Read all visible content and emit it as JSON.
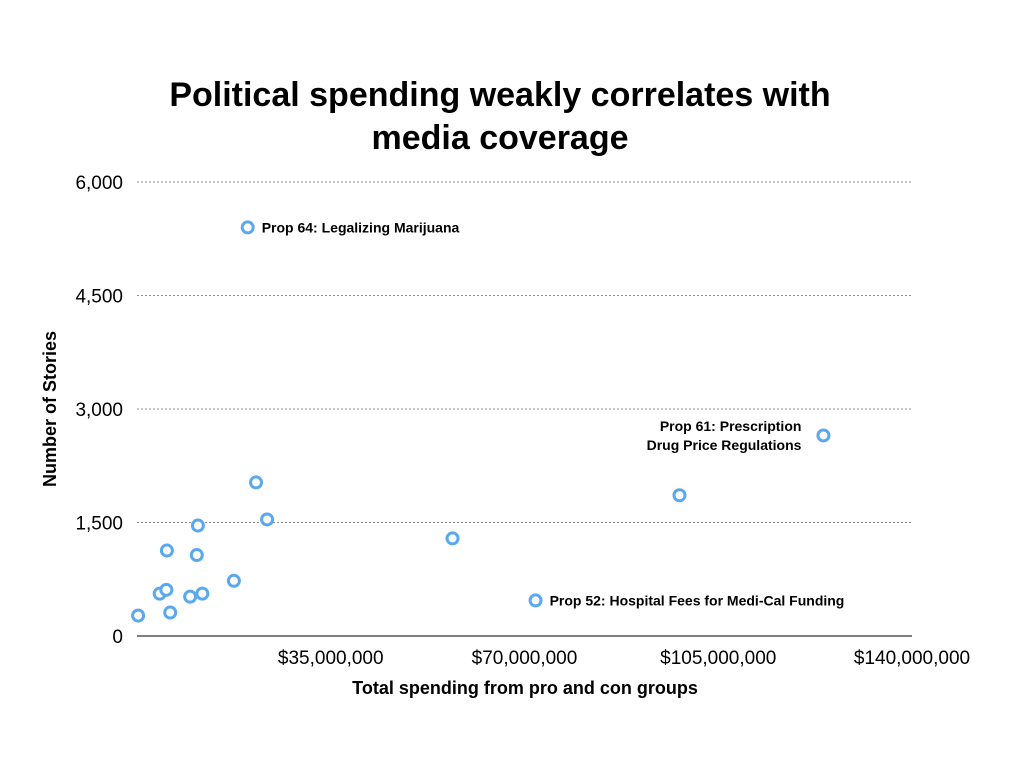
{
  "chart_data": {
    "type": "scatter",
    "title_lines": [
      "Political spending weakly correlates with",
      "media coverage"
    ],
    "xlabel": "Total spending from pro and con groups",
    "ylabel": "Number of Stories",
    "xlim": [
      0,
      140000000
    ],
    "ylim": [
      0,
      6000
    ],
    "x_ticks": [
      35000000,
      70000000,
      105000000,
      140000000
    ],
    "x_tick_labels": [
      "$35,000,000",
      "$70,000,000",
      "$105,000,000",
      "$140,000,000"
    ],
    "y_ticks": [
      0,
      1500,
      3000,
      4500,
      6000
    ],
    "y_tick_labels": [
      "0",
      "1,500",
      "3,000",
      "4,500",
      "6,000"
    ],
    "grid": "horizontal dotted",
    "marker_color": "#5aa9f0",
    "points": [
      {
        "x": 20000000,
        "y": 5400,
        "label": "Prop 64: Legalizing Marijuana"
      },
      {
        "x": 124000000,
        "y": 2650,
        "label_lines": [
          "Prop 61: Prescription",
          "Drug Price Regulations"
        ]
      },
      {
        "x": 72000000,
        "y": 470,
        "label": "Prop 52: Hospital Fees for Medi-Cal Funding"
      },
      {
        "x": 98000000,
        "y": 1860
      },
      {
        "x": 57000000,
        "y": 1290
      },
      {
        "x": 21500000,
        "y": 2030
      },
      {
        "x": 23500000,
        "y": 1540
      },
      {
        "x": 11000000,
        "y": 1460
      },
      {
        "x": 10800000,
        "y": 1070
      },
      {
        "x": 5400000,
        "y": 1130
      },
      {
        "x": 17500000,
        "y": 730
      },
      {
        "x": 4100000,
        "y": 560
      },
      {
        "x": 5300000,
        "y": 610
      },
      {
        "x": 9600000,
        "y": 520
      },
      {
        "x": 11800000,
        "y": 560
      },
      {
        "x": 6000000,
        "y": 310
      },
      {
        "x": 200000,
        "y": 270
      }
    ]
  }
}
